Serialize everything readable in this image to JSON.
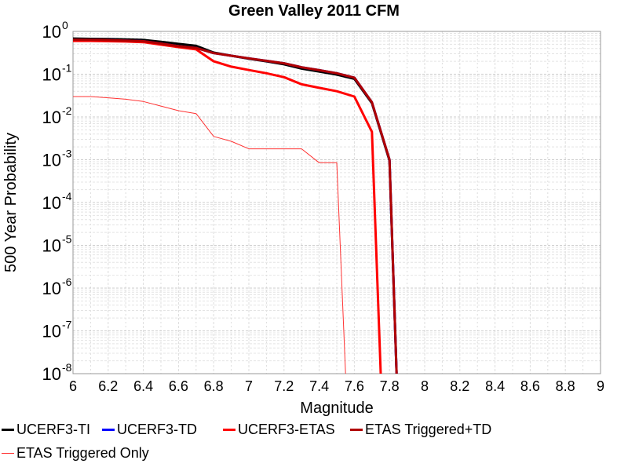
{
  "chart_data": {
    "type": "line",
    "title": "Green Valley 2011 CFM",
    "xlabel": "Magnitude",
    "ylabel": "500 Year Probability",
    "xlim": [
      6,
      9
    ],
    "ylim": [
      1e-08,
      1
    ],
    "yscale": "log",
    "grid": true,
    "legend_position": "bottom",
    "xticks": [
      "6",
      "6.2",
      "6.4",
      "6.6",
      "6.8",
      "7",
      "7.2",
      "7.4",
      "7.6",
      "7.8",
      "8",
      "8.2",
      "8.4",
      "8.6",
      "8.8",
      "9"
    ],
    "yticks": [
      {
        "base": "10",
        "exp": "0"
      },
      {
        "base": "10",
        "exp": "-1"
      },
      {
        "base": "10",
        "exp": "-2"
      },
      {
        "base": "10",
        "exp": "-3"
      },
      {
        "base": "10",
        "exp": "-4"
      },
      {
        "base": "10",
        "exp": "-5"
      },
      {
        "base": "10",
        "exp": "-6"
      },
      {
        "base": "10",
        "exp": "-7"
      },
      {
        "base": "10",
        "exp": "-8"
      }
    ],
    "series": [
      {
        "name": "UCERF3-TI",
        "color": "#000000",
        "width": 3,
        "x": [
          6.0,
          6.1,
          6.2,
          6.3,
          6.4,
          6.5,
          6.6,
          6.7,
          6.8,
          6.9,
          7.0,
          7.1,
          7.2,
          7.3,
          7.4,
          7.5,
          7.6,
          7.7,
          7.8,
          7.84
        ],
        "y": [
          0.68,
          0.67,
          0.66,
          0.65,
          0.63,
          0.57,
          0.51,
          0.46,
          0.32,
          0.27,
          0.23,
          0.2,
          0.17,
          0.135,
          0.115,
          0.098,
          0.078,
          0.021,
          0.00095,
          1e-08
        ]
      },
      {
        "name": "UCERF3-TD",
        "color": "#0000ff",
        "width": 3,
        "x": [
          6.0,
          6.1,
          6.2,
          6.3,
          6.4,
          6.5,
          6.6,
          6.7,
          6.8,
          6.9,
          7.0,
          7.1,
          7.2,
          7.3,
          7.4,
          7.5,
          7.6,
          7.7,
          7.8,
          7.84
        ],
        "y": [
          0.64,
          0.635,
          0.625,
          0.61,
          0.59,
          0.52,
          0.45,
          0.41,
          0.31,
          0.27,
          0.235,
          0.205,
          0.18,
          0.145,
          0.124,
          0.105,
          0.083,
          0.022,
          0.001,
          1e-08
        ]
      },
      {
        "name": "UCERF3-ETAS",
        "color": "#ff0000",
        "width": 3,
        "x": [
          6.0,
          6.1,
          6.2,
          6.3,
          6.4,
          6.5,
          6.6,
          6.7,
          6.8,
          6.9,
          7.0,
          7.1,
          7.2,
          7.3,
          7.4,
          7.5,
          7.6,
          7.7,
          7.75
        ],
        "y": [
          0.6,
          0.6,
          0.59,
          0.58,
          0.56,
          0.49,
          0.43,
          0.38,
          0.2,
          0.15,
          0.125,
          0.105,
          0.085,
          0.058,
          0.048,
          0.04,
          0.03,
          0.0045,
          1e-08
        ]
      },
      {
        "name": "ETAS Triggered+TD",
        "color": "#b00000",
        "width": 3,
        "x": [
          6.0,
          6.1,
          6.2,
          6.3,
          6.4,
          6.5,
          6.6,
          6.7,
          6.8,
          6.9,
          7.0,
          7.1,
          7.2,
          7.3,
          7.4,
          7.5,
          7.6,
          7.7,
          7.8,
          7.84
        ],
        "y": [
          0.64,
          0.635,
          0.625,
          0.61,
          0.59,
          0.52,
          0.45,
          0.41,
          0.31,
          0.27,
          0.235,
          0.205,
          0.18,
          0.145,
          0.124,
          0.105,
          0.083,
          0.022,
          0.001,
          1e-08
        ]
      },
      {
        "name": "ETAS Triggered Only",
        "color": "#ff3333",
        "width": 1,
        "x": [
          6.0,
          6.1,
          6.2,
          6.3,
          6.4,
          6.5,
          6.6,
          6.7,
          6.8,
          6.9,
          7.0,
          7.1,
          7.2,
          7.3,
          7.4,
          7.5,
          7.55
        ],
        "y": [
          0.03,
          0.03,
          0.028,
          0.026,
          0.023,
          0.018,
          0.014,
          0.012,
          0.0035,
          0.0027,
          0.0018,
          0.0018,
          0.0018,
          0.0018,
          0.00085,
          0.00085,
          1e-08
        ]
      }
    ]
  }
}
